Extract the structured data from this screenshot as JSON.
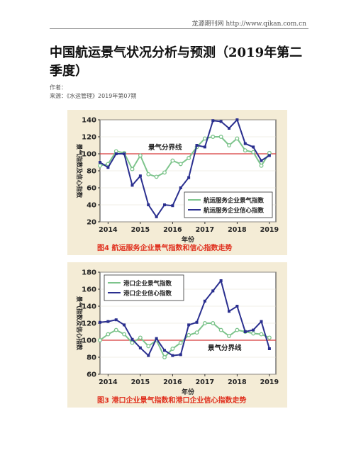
{
  "header": {
    "site_text": "龙源期刊网 http://www.qikan.com.cn"
  },
  "article": {
    "title": "中国航运景气状况分析与预测（2019年第二季度）",
    "author_label": "作者：",
    "source_label": "来源：《水运管理》2019年第07期"
  },
  "colors": {
    "green_series": "#7dc48c",
    "blue_series": "#2a2f8f",
    "threshold": "#d83a3a",
    "caption": "#e0301e"
  },
  "chart_data": [
    {
      "type": "line",
      "caption": "图4 航运服务企业景气指数和信心指数走势",
      "ylabel": "景气指数及信心指数",
      "xlabel": "年份",
      "x_ticks": [
        "2014",
        "2015",
        "2016",
        "2017",
        "2018",
        "2019"
      ],
      "ylim": [
        20,
        140
      ],
      "y_ticks": [
        20,
        40,
        60,
        80,
        100,
        120,
        140
      ],
      "threshold": {
        "value": 100,
        "label": "景气分界线"
      },
      "legend_position": "bottom-right",
      "series": [
        {
          "name": "航运服务企业景气指数",
          "color": "#7dc48c",
          "x": [
            2013.75,
            2014.0,
            2014.25,
            2014.5,
            2014.75,
            2015.0,
            2015.25,
            2015.5,
            2015.75,
            2016.0,
            2016.25,
            2016.5,
            2016.75,
            2017.0,
            2017.25,
            2017.5,
            2017.75,
            2018.0,
            2018.25,
            2018.5,
            2018.75,
            2019.0
          ],
          "values": [
            86,
            88,
            103,
            101,
            82,
            98,
            76,
            73,
            78,
            92,
            88,
            95,
            108,
            118,
            120,
            120,
            110,
            118,
            104,
            102,
            86,
            101
          ]
        },
        {
          "name": "航运服务企业信心指数",
          "color": "#2a2f8f",
          "x": [
            2013.75,
            2014.0,
            2014.25,
            2014.5,
            2014.75,
            2015.0,
            2015.25,
            2015.5,
            2015.75,
            2016.0,
            2016.25,
            2016.5,
            2016.75,
            2017.0,
            2017.25,
            2017.5,
            2017.75,
            2018.0,
            2018.25,
            2018.5,
            2018.75,
            2019.0
          ],
          "values": [
            90,
            84,
            100,
            100,
            63,
            74,
            40,
            26,
            40,
            39,
            60,
            72,
            110,
            108,
            139,
            138,
            130,
            140,
            112,
            108,
            92,
            98
          ]
        }
      ]
    },
    {
      "type": "line",
      "caption": "图3 港口企业景气指数和港口企业信心指数走势",
      "ylabel": "景气指数及信心指数",
      "xlabel": "年份",
      "x_ticks": [
        "2014",
        "2015",
        "2016",
        "2017",
        "2018",
        "2019"
      ],
      "ylim": [
        60,
        180
      ],
      "y_ticks": [
        60,
        80,
        100,
        120,
        140,
        160,
        180
      ],
      "threshold": {
        "value": 100,
        "label": "景气分界线"
      },
      "legend_position": "top-left",
      "series": [
        {
          "name": "港口企业景气指数",
          "color": "#7dc48c",
          "x": [
            2013.75,
            2014.0,
            2014.25,
            2014.5,
            2014.75,
            2015.0,
            2015.25,
            2015.5,
            2015.75,
            2016.0,
            2016.25,
            2016.5,
            2016.75,
            2017.0,
            2017.25,
            2017.5,
            2017.75,
            2018.0,
            2018.25,
            2018.5,
            2018.75,
            2019.0
          ],
          "values": [
            100,
            107,
            112,
            107,
            97,
            103,
            93,
            100,
            80,
            90,
            97,
            106,
            109,
            120,
            120,
            112,
            105,
            112,
            110,
            108,
            107,
            103
          ]
        },
        {
          "name": "港口企业信心指数",
          "color": "#2a2f8f",
          "x": [
            2013.75,
            2014.0,
            2014.25,
            2014.5,
            2014.75,
            2015.0,
            2015.25,
            2015.5,
            2015.75,
            2016.0,
            2016.25,
            2016.5,
            2016.75,
            2017.0,
            2017.25,
            2017.5,
            2017.75,
            2018.0,
            2018.25,
            2018.5,
            2018.75,
            2019.0
          ],
          "values": [
            121,
            122,
            124,
            118,
            101,
            91,
            82,
            102,
            88,
            82,
            83,
            118,
            121,
            146,
            158,
            170,
            134,
            140,
            110,
            112,
            122,
            90
          ]
        }
      ]
    }
  ]
}
